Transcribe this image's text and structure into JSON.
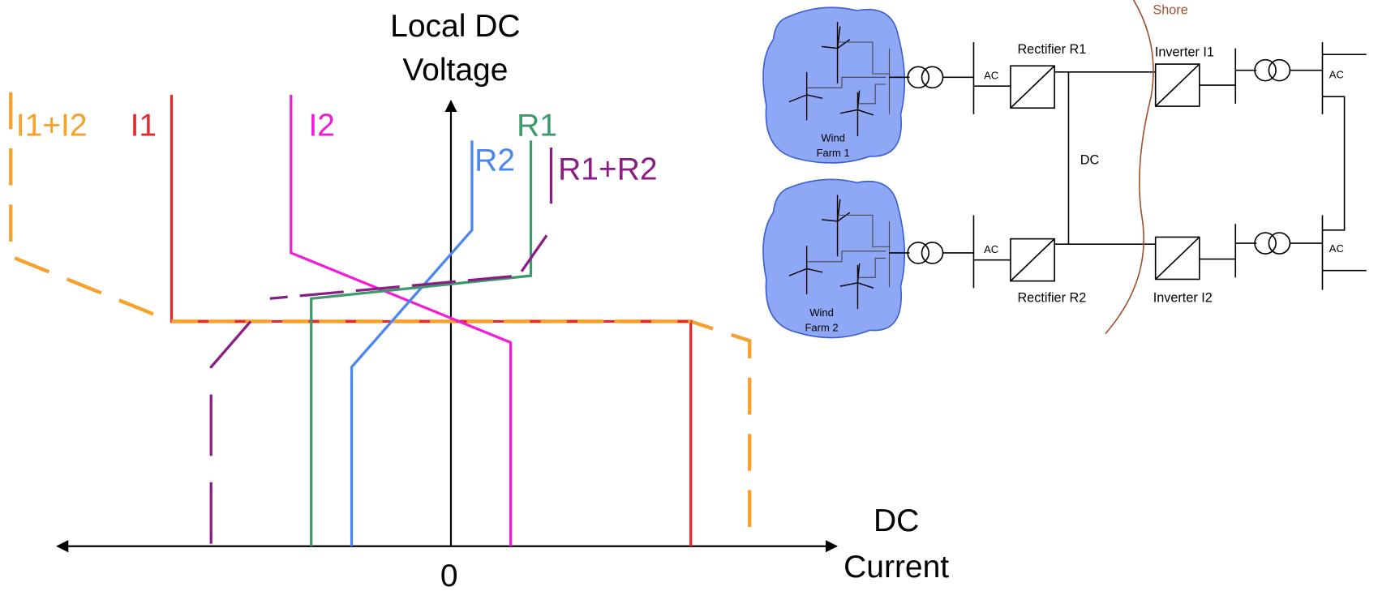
{
  "characteristic_plot": {
    "y_axis_label": [
      "Local DC",
      "Voltage"
    ],
    "x_axis_label": [
      "DC",
      "Current"
    ],
    "origin_label": "0",
    "curve_labels": [
      "I1+I2",
      "I1",
      "I2",
      "R2",
      "R1",
      "R1+R2"
    ]
  },
  "network_diagram": {
    "shore_label": "Shore",
    "converters": [
      "Rectifier R1",
      "Inverter I1",
      "Rectifier R2",
      "Inverter I2"
    ],
    "ac_labels": [
      "AC",
      "AC",
      "AC",
      "AC"
    ],
    "dc_label": "DC",
    "wind_farms": [
      [
        "Wind",
        "Farm 1"
      ],
      [
        "Wind",
        "Farm 2"
      ]
    ]
  }
}
